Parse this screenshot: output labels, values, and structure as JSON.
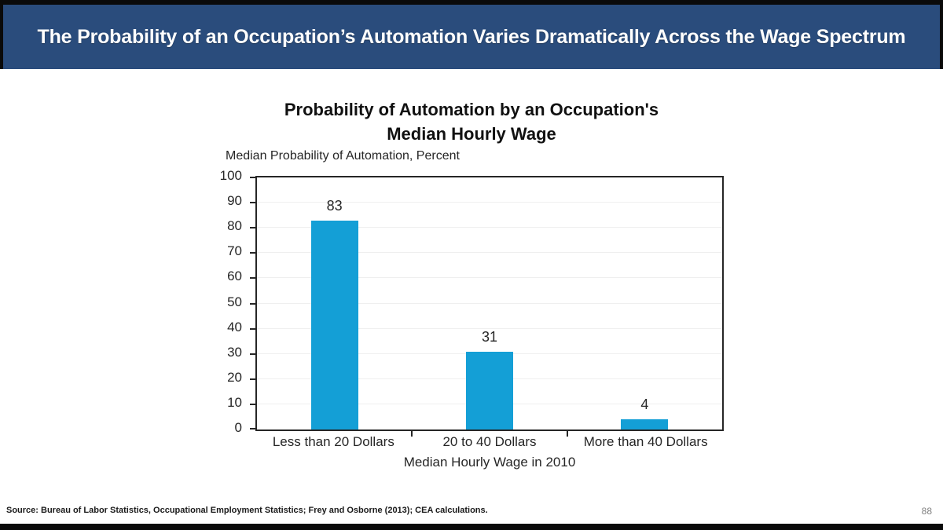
{
  "banner": {
    "title": "The Probability of an Occupation’s Automation Varies Dramatically Across the Wage Spectrum"
  },
  "chart": {
    "title_line1": "Probability of Automation by an Occupation's",
    "title_line2": "Median Hourly Wage",
    "unit_label": "Median Probability of Automation, Percent"
  },
  "chart_data": {
    "type": "bar",
    "title": "Probability of Automation by an Occupation's Median Hourly Wage",
    "categories": [
      "Less than 20 Dollars",
      "20 to 40 Dollars",
      "More than 40 Dollars"
    ],
    "values": [
      83,
      31,
      4
    ],
    "xlabel": "Median Hourly Wage in 2010",
    "ylabel": "Median Probability of Automation, Percent",
    "ylim": [
      0,
      100
    ],
    "ytick_step": 10,
    "grid": true,
    "legend": "none",
    "bar_color": "#149fd6"
  },
  "footer": {
    "source": "Source: Bureau of Labor Statistics, Occupational Employment Statistics; Frey and Osborne (2013); CEA calculations.",
    "page_number": "88"
  },
  "colors": {
    "banner_background": "#2a4c7c",
    "banner_text": "#ffffff",
    "bar_fill": "#149fd6",
    "axis": "#262626",
    "gridline": "#efefef",
    "edge_bars": "#0a0a0a"
  }
}
